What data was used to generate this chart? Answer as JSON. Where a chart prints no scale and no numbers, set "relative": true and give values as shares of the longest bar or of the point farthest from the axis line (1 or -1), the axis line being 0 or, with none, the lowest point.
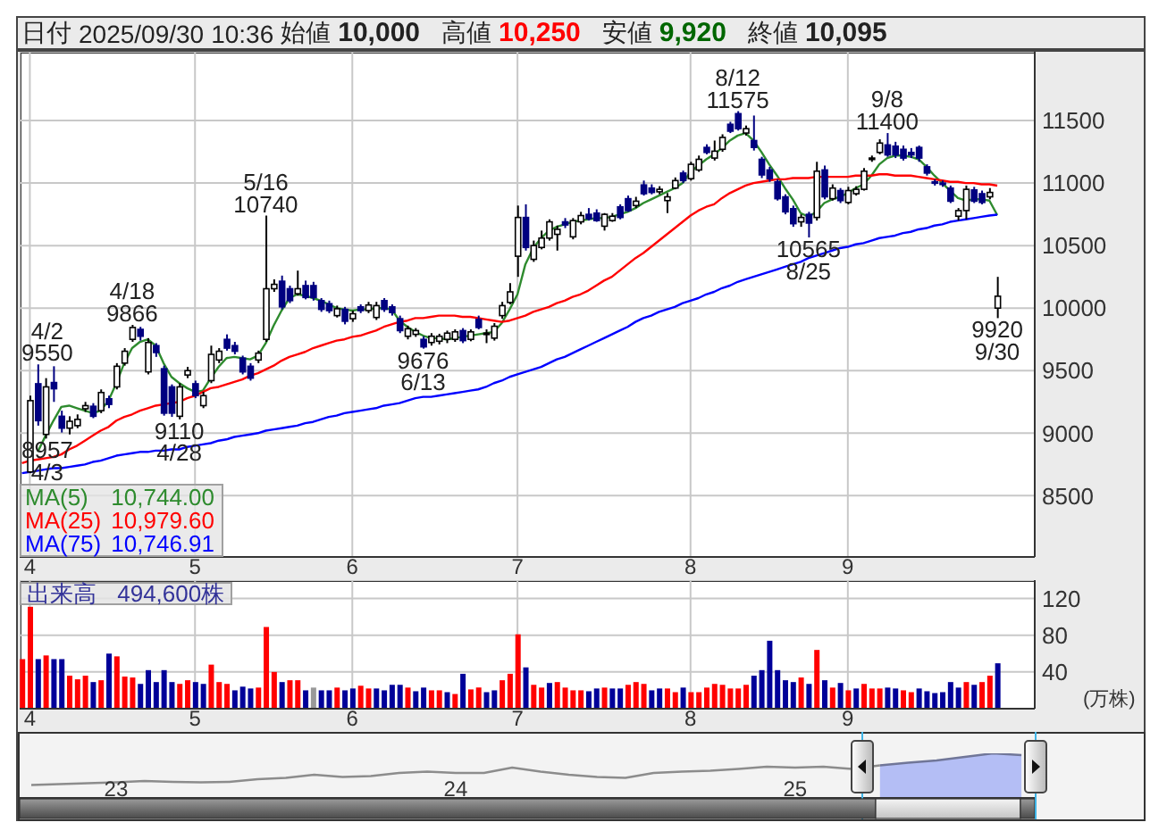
{
  "chart_data": [
    {
      "type": "candlestick",
      "title": "日付 2025/09/30 10:36 始値 10,000 高値 10,250 安値 9,920 終値 10,095",
      "categories": [
        null,
        "4",
        null,
        null,
        null,
        null,
        null,
        null,
        null,
        null,
        null,
        null,
        null,
        null,
        null,
        null,
        null,
        null,
        null,
        null,
        null,
        null,
        "5",
        null,
        null,
        null,
        null,
        null,
        null,
        null,
        null,
        null,
        null,
        null,
        null,
        null,
        null,
        null,
        null,
        null,
        null,
        null,
        "6",
        null,
        null,
        null,
        null,
        null,
        null,
        null,
        null,
        null,
        null,
        null,
        null,
        null,
        null,
        null,
        null,
        null,
        null,
        null,
        null,
        "7",
        null,
        null,
        null,
        null,
        null,
        null,
        null,
        null,
        null,
        null,
        null,
        null,
        null,
        null,
        null,
        null,
        null,
        null,
        null,
        null,
        null,
        "8",
        null,
        null,
        null,
        null,
        null,
        null,
        null,
        null,
        null,
        null,
        null,
        null,
        null,
        null,
        null,
        null,
        null,
        null,
        null,
        "9",
        null,
        null,
        null,
        null,
        null,
        null,
        null,
        null,
        null,
        null,
        null,
        null,
        null,
        null,
        null,
        null,
        null,
        null,
        null
      ],
      "ohlc": [
        null,
        [
          8690,
          9300,
          8680,
          9260
        ],
        [
          9395,
          9550,
          9060,
          9100
        ],
        [
          8990,
          9440,
          8957,
          9370
        ],
        [
          9405,
          9535,
          9250,
          9355
        ],
        [
          9135,
          9180,
          9005,
          9040
        ],
        [
          9040,
          9135,
          8990,
          9095
        ],
        [
          9060,
          9150,
          9040,
          9110
        ],
        [
          9195,
          9250,
          9170,
          9220
        ],
        [
          9215,
          9240,
          9120,
          9135
        ],
        [
          9180,
          9350,
          9160,
          9325
        ],
        [
          9275,
          9300,
          9200,
          9230
        ],
        [
          9370,
          9560,
          9350,
          9535
        ],
        [
          9560,
          9680,
          9540,
          9655
        ],
        [
          9750,
          9866,
          9730,
          9845
        ],
        [
          9830,
          9850,
          9740,
          9775
        ],
        [
          9490,
          9760,
          9470,
          9725
        ],
        [
          9700,
          9720,
          9610,
          9645
        ],
        [
          9515,
          9540,
          9140,
          9160
        ],
        [
          9370,
          9390,
          9130,
          9160
        ],
        [
          9135,
          9400,
          9110,
          9370
        ],
        [
          9465,
          9530,
          9440,
          9500
        ],
        [
          9395,
          9420,
          9280,
          9300
        ],
        [
          9220,
          9330,
          9200,
          9300
        ],
        [
          9420,
          9700,
          9400,
          9630
        ],
        [
          9585,
          9680,
          9560,
          9655
        ],
        [
          9750,
          9790,
          9660,
          9680
        ],
        [
          9700,
          9730,
          9630,
          9655
        ],
        [
          9600,
          9620,
          9470,
          9490
        ],
        [
          9535,
          9560,
          9420,
          9440
        ],
        [
          9585,
          9660,
          9560,
          9640
        ],
        [
          9750,
          10740,
          9730,
          10155
        ],
        [
          10155,
          10230,
          10130,
          10190
        ],
        [
          10215,
          10260,
          9990,
          10010
        ],
        [
          10155,
          10180,
          10040,
          10060
        ],
        [
          10115,
          10300,
          10100,
          10155
        ],
        [
          10180,
          10220,
          10070,
          10085
        ],
        [
          10180,
          10210,
          10060,
          10085
        ],
        [
          10060,
          10080,
          9970,
          9990
        ],
        [
          10035,
          10060,
          9960,
          9980
        ],
        [
          9940,
          10020,
          9925,
          9995
        ],
        [
          9990,
          10010,
          9870,
          9895
        ],
        [
          9915,
          9980,
          9890,
          9955
        ],
        [
          10010,
          10030,
          9960,
          9980
        ],
        [
          9980,
          10050,
          9960,
          10025
        ],
        [
          9925,
          10050,
          9905,
          10020
        ],
        [
          10060,
          10080,
          9970,
          9990
        ],
        [
          10010,
          10030,
          9940,
          9965
        ],
        [
          9915,
          9940,
          9800,
          9820
        ],
        [
          9775,
          9860,
          9750,
          9835
        ],
        [
          9790,
          9840,
          9770,
          9820
        ],
        [
          9750,
          9775,
          9676,
          9690
        ],
        [
          9725,
          9800,
          9700,
          9775
        ],
        [
          9735,
          9795,
          9710,
          9775
        ],
        [
          9750,
          9820,
          9720,
          9800
        ],
        [
          9750,
          9830,
          9730,
          9810
        ],
        [
          9820,
          9840,
          9720,
          9740
        ],
        [
          9750,
          9830,
          9735,
          9810
        ],
        [
          9910,
          9940,
          9830,
          9845
        ],
        [
          9790,
          9830,
          9720,
          9800
        ],
        [
          9760,
          9880,
          9740,
          9855
        ],
        [
          9940,
          10050,
          9915,
          10020
        ],
        [
          10045,
          10200,
          10030,
          10130
        ],
        [
          10415,
          10820,
          10250,
          10725
        ],
        [
          10725,
          10830,
          10460,
          10485
        ],
        [
          10390,
          10540,
          10370,
          10500
        ],
        [
          10485,
          10620,
          10470,
          10560
        ],
        [
          10560,
          10710,
          10540,
          10690
        ],
        [
          10590,
          10660,
          10460,
          10630
        ],
        [
          10690,
          10720,
          10640,
          10665
        ],
        [
          10570,
          10720,
          10550,
          10700
        ],
        [
          10690,
          10770,
          10670,
          10740
        ],
        [
          10750,
          10800,
          10700,
          10715
        ],
        [
          10760,
          10790,
          10690,
          10700
        ],
        [
          10655,
          10760,
          10620,
          10750
        ],
        [
          10700,
          10760,
          10690,
          10735
        ],
        [
          10810,
          10830,
          10710,
          10725
        ],
        [
          10875,
          10900,
          10770,
          10780
        ],
        [
          10820,
          10890,
          10800,
          10855
        ],
        [
          10985,
          11020,
          10900,
          10915
        ],
        [
          10960,
          10990,
          10910,
          10925
        ],
        [
          10930,
          10975,
          10910,
          10950
        ],
        [
          10860,
          10920,
          10760,
          10890
        ],
        [
          10960,
          11045,
          10950,
          11020
        ],
        [
          11080,
          11100,
          11000,
          11020
        ],
        [
          11035,
          11170,
          11020,
          11150
        ],
        [
          11105,
          11220,
          11090,
          11190
        ],
        [
          11285,
          11310,
          11230,
          11245
        ],
        [
          11200,
          11340,
          11180,
          11255
        ],
        [
          11270,
          11390,
          11250,
          11365
        ],
        [
          11470,
          11490,
          11400,
          11415
        ],
        [
          11555,
          11575,
          11420,
          11435
        ],
        [
          11400,
          11460,
          11380,
          11435
        ],
        [
          11340,
          11540,
          11260,
          11285
        ],
        [
          11190,
          11210,
          11040,
          11065
        ],
        [
          11105,
          11130,
          11010,
          11035
        ],
        [
          11010,
          11030,
          10860,
          10875
        ],
        [
          10890,
          10910,
          10750,
          10770
        ],
        [
          10795,
          10820,
          10650,
          10675
        ],
        [
          10690,
          10750,
          10650,
          10725
        ],
        [
          10750,
          10770,
          10565,
          10680
        ],
        [
          10725,
          11170,
          10700,
          11095
        ],
        [
          11105,
          11140,
          10870,
          10890
        ],
        [
          10875,
          10990,
          10860,
          10960
        ],
        [
          10940,
          10960,
          10840,
          10860
        ],
        [
          10845,
          10970,
          10830,
          10940
        ],
        [
          10915,
          10975,
          10900,
          10950
        ],
        [
          10950,
          11120,
          10940,
          11095
        ],
        [
          11195,
          11220,
          11170,
          11200
        ],
        [
          11245,
          11350,
          11230,
          11320
        ],
        [
          11305,
          11400,
          11210,
          11225
        ],
        [
          11295,
          11330,
          11200,
          11225
        ],
        [
          11270,
          11300,
          11180,
          11200
        ],
        [
          11245,
          11280,
          11200,
          11225
        ],
        [
          11285,
          11300,
          11170,
          11200
        ],
        [
          11130,
          11150,
          11060,
          11080
        ],
        [
          11010,
          11030,
          10980,
          11005
        ],
        [
          11000,
          11020,
          10970,
          10995
        ],
        [
          10960,
          10980,
          10840,
          10855
        ],
        [
          10735,
          10800,
          10700,
          10780
        ],
        [
          10780,
          10980,
          10710,
          10950
        ],
        [
          10945,
          10970,
          10840,
          10855
        ],
        [
          10915,
          10940,
          10830,
          10845
        ],
        [
          10890,
          10960,
          10870,
          10925
        ],
        [
          10000,
          10250,
          9920,
          10095
        ]
      ],
      "series": [
        {
          "name": "MA(5) 10,744.00",
          "type": "line",
          "color": "#2e8b2e",
          "values": [
            null,
            null,
            8850,
            8980,
            9100,
            9210,
            9220,
            9200,
            9180,
            9160,
            9180,
            9260,
            9400,
            9560,
            9680,
            9730,
            9750,
            9700,
            9560,
            9450,
            9400,
            9360,
            9330,
            9340,
            9440,
            9530,
            9600,
            9610,
            9600,
            9590,
            9620,
            9720,
            9860,
            9980,
            10080,
            10110,
            10100,
            10080,
            10060,
            10030,
            10000,
            9990,
            9980,
            9990,
            9990,
            10000,
            10000,
            9990,
            9900,
            9850,
            9810,
            9780,
            9760,
            9760,
            9750,
            9760,
            9770,
            9780,
            9790,
            9800,
            9810,
            9880,
            9990,
            10110,
            10350,
            10480,
            10560,
            10620,
            10650,
            10670,
            10690,
            10700,
            10710,
            10720,
            10720,
            10730,
            10750,
            10770,
            10800,
            10840,
            10870,
            10900,
            10930,
            10960,
            11000,
            11090,
            11140,
            11190,
            11230,
            11280,
            11340,
            11380,
            11400,
            11340,
            11250,
            11150,
            11060,
            10960,
            10870,
            10760,
            10730,
            10770,
            10840,
            10870,
            10890,
            10920,
            10960,
            10990,
            11060,
            11150,
            11200,
            11220,
            11220,
            11210,
            11190,
            11130,
            11060,
            11000,
            10940,
            10880,
            10860,
            10870,
            10870,
            10860,
            10744
          ]
        },
        {
          "name": "MA(25) 10,979.60",
          "type": "line",
          "color": "#ff0000",
          "values": [
            8760,
            8780,
            8790,
            8800,
            8810,
            8830,
            8870,
            8900,
            8940,
            8980,
            9020,
            9050,
            9100,
            9130,
            9150,
            9180,
            9200,
            9220,
            9230,
            9240,
            9250,
            9280,
            9300,
            9330,
            9360,
            9370,
            9390,
            9410,
            9430,
            9460,
            9480,
            9510,
            9540,
            9580,
            9610,
            9630,
            9650,
            9680,
            9700,
            9720,
            9740,
            9750,
            9770,
            9780,
            9800,
            9820,
            9850,
            9870,
            9890,
            9900,
            9920,
            9920,
            9930,
            9940,
            9940,
            9940,
            9930,
            9930,
            9920,
            9910,
            9900,
            9890,
            9900,
            9920,
            9940,
            9970,
            9990,
            10010,
            10040,
            10060,
            10090,
            10110,
            10140,
            10180,
            10220,
            10250,
            10300,
            10350,
            10400,
            10440,
            10490,
            10540,
            10590,
            10640,
            10690,
            10740,
            10780,
            10810,
            10830,
            10880,
            10920,
            10950,
            10980,
            11000,
            11010,
            11020,
            11030,
            11030,
            11040,
            11040,
            11040,
            11050,
            11050,
            11050,
            11050,
            11050,
            11060,
            11060,
            11060,
            11070,
            11070,
            11060,
            11060,
            11060,
            11050,
            11040,
            11030,
            11020,
            11010,
            11010,
            11000,
            11000,
            10990,
            10990,
            10979.6
          ]
        },
        {
          "name": "MA(75) 10,746.91",
          "type": "line",
          "color": "#0000ff",
          "values": [
            8680,
            8690,
            8700,
            8710,
            8720,
            8720,
            8730,
            8740,
            8750,
            8770,
            8780,
            8800,
            8820,
            8830,
            8840,
            8850,
            8850,
            8860,
            8860,
            8870,
            8870,
            8890,
            8900,
            8910,
            8920,
            8940,
            8950,
            8970,
            8980,
            8990,
            9000,
            9020,
            9030,
            9040,
            9050,
            9060,
            9080,
            9090,
            9110,
            9130,
            9140,
            9160,
            9170,
            9180,
            9190,
            9200,
            9220,
            9230,
            9240,
            9260,
            9280,
            9290,
            9290,
            9300,
            9310,
            9320,
            9330,
            9340,
            9350,
            9370,
            9400,
            9420,
            9450,
            9470,
            9490,
            9510,
            9530,
            9560,
            9590,
            9610,
            9640,
            9670,
            9700,
            9730,
            9760,
            9790,
            9820,
            9850,
            9890,
            9920,
            9940,
            9970,
            9990,
            10010,
            10040,
            10060,
            10080,
            10110,
            10130,
            10160,
            10180,
            10210,
            10230,
            10250,
            10270,
            10290,
            10310,
            10330,
            10350,
            10370,
            10400,
            10420,
            10440,
            10460,
            10480,
            10490,
            10510,
            10520,
            10540,
            10560,
            10570,
            10580,
            10600,
            10610,
            10630,
            10640,
            10660,
            10670,
            10690,
            10700,
            10710,
            10720,
            10730,
            10740,
            10746.91
          ]
        }
      ],
      "ylim": [
        8010,
        12050
      ],
      "yticks": [
        8500,
        9000,
        9500,
        10000,
        10500,
        11000,
        11500
      ],
      "grid": true,
      "legend": "bottom left",
      "annotations": [
        {
          "text": "4/2\n9550",
          "y": 9550
        },
        {
          "text": "8957\n4/3",
          "y": 8957
        },
        {
          "text": "4/18\n9866",
          "y": 9866
        },
        {
          "text": "9110\n4/28",
          "y": 9110
        },
        {
          "text": "5/16\n10740",
          "y": 10740
        },
        {
          "text": "9676\n6/13",
          "y": 9676
        },
        {
          "text": "8/12\n11575",
          "y": 11575
        },
        {
          "text": "10565\n8/25",
          "y": 10565
        },
        {
          "text": "9/8\n11400",
          "y": 11400
        },
        {
          "text": "9920\n9/30",
          "y": 9920
        }
      ]
    },
    {
      "type": "bar",
      "title": "出来高 494,600株",
      "ylabel": "(万株)",
      "categories": [
        null,
        "4",
        null,
        null,
        null,
        null,
        null,
        null,
        null,
        null,
        null,
        null,
        null,
        null,
        null,
        null,
        null,
        null,
        null,
        null,
        null,
        null,
        "5",
        null,
        null,
        null,
        null,
        null,
        null,
        null,
        null,
        null,
        null,
        null,
        null,
        null,
        null,
        null,
        null,
        null,
        null,
        null,
        "6",
        null,
        null,
        null,
        null,
        null,
        null,
        null,
        null,
        null,
        null,
        null,
        null,
        null,
        null,
        null,
        null,
        null,
        null,
        null,
        null,
        "7",
        null,
        null,
        null,
        null,
        null,
        null,
        null,
        null,
        null,
        null,
        null,
        null,
        null,
        null,
        null,
        null,
        null,
        null,
        null,
        null,
        null,
        "8",
        null,
        null,
        null,
        null,
        null,
        null,
        null,
        null,
        null,
        null,
        null,
        null,
        null,
        null,
        null,
        null,
        null,
        null,
        null,
        "9",
        null,
        null,
        null,
        null,
        null,
        null,
        null,
        null,
        null,
        null,
        null,
        null,
        null,
        null,
        null,
        null,
        null,
        null,
        null
      ],
      "values": [
        54,
        111,
        54,
        58,
        54,
        54,
        36,
        32,
        36,
        29,
        31,
        60,
        57,
        35,
        34,
        27,
        42,
        29,
        42,
        29,
        27,
        31,
        29,
        27,
        48,
        29,
        27,
        20,
        24,
        22,
        23,
        89,
        40,
        29,
        31,
        31,
        20,
        23,
        20,
        20,
        23,
        20,
        22,
        25,
        22,
        22,
        20,
        26,
        26,
        23,
        19,
        23,
        20,
        20,
        18,
        16,
        38,
        21,
        23,
        18,
        20,
        31,
        38,
        81,
        45,
        26,
        23,
        28,
        29,
        23,
        20,
        20,
        19,
        22,
        23,
        22,
        22,
        26,
        29,
        27,
        20,
        22,
        22,
        18,
        23,
        18,
        18,
        23,
        27,
        26,
        22,
        22,
        26,
        36,
        42,
        74,
        42,
        31,
        29,
        34,
        27,
        64,
        31,
        23,
        28,
        20,
        22,
        27,
        22,
        22,
        23,
        22,
        20,
        18,
        22,
        19,
        17,
        18,
        29,
        23,
        29,
        26,
        29,
        36,
        49.46
      ],
      "colors": [
        "#ff0000",
        "#ff0000",
        "#000099",
        "#ff0000",
        "#000099",
        "#000099",
        "#ff0000",
        "#ff0000",
        "#ff0000",
        "#000099",
        "#ff0000",
        "#000099",
        "#ff0000",
        "#ff0000",
        "#ff0000",
        "#000099",
        "#000099",
        "#000099",
        "#000099",
        "#000099",
        "#ff0000",
        "#ff0000",
        "#000099",
        "#000099",
        "#ff0000",
        "#ff0000",
        "#ff0000",
        "#000099",
        "#000099",
        "#000099",
        "#ff0000",
        "#ff0000",
        "#ff0000",
        "#000099",
        "#ff0000",
        "#ff0000",
        "#000099",
        "#999999",
        "#000099",
        "#000099",
        "#ff0000",
        "#000099",
        "#000099",
        "#ff0000",
        "#ff0000",
        "#000099",
        "#000099",
        "#000099",
        "#000099",
        "#ff0000",
        "#000099",
        "#000099",
        "#ff0000",
        "#ff0000",
        "#000099",
        "#ff0000",
        "#000099",
        "#ff0000",
        "#ff0000",
        "#000099",
        "#000099",
        "#ff0000",
        "#ff0000",
        "#ff0000",
        "#000099",
        "#ff0000",
        "#ff0000",
        "#000099",
        "#ff0000",
        "#ff0000",
        "#ff0000",
        "#ff0000",
        "#000099",
        "#000099",
        "#ff0000",
        "#000099",
        "#000099",
        "#ff0000",
        "#ff0000",
        "#ff0000",
        "#000099",
        "#000099",
        "#ff0000",
        "#ff0000",
        "#000099",
        "#ff0000",
        "#ff0000",
        "#ff0000",
        "#ff0000",
        "#ff0000",
        "#ff0000",
        "#ff0000",
        "#ff0000",
        "#000099",
        "#000099",
        "#000099",
        "#000099",
        "#000099",
        "#000099",
        "#ff0000",
        "#000099",
        "#ff0000",
        "#000099",
        "#ff0000",
        "#000099",
        "#ff0000",
        "#000099",
        "#ff0000",
        "#ff0000",
        "#ff0000",
        "#000099",
        "#000099",
        "#ff0000",
        "#ff0000",
        "#000099",
        "#000099",
        "#000099",
        "#000099",
        "#000099",
        "#000099",
        "#ff0000",
        "#000099",
        "#ff0000",
        "#ff0000",
        "#000099"
      ],
      "ylim": [
        0,
        140
      ],
      "yticks": [
        40,
        80,
        120
      ],
      "grid": true
    },
    {
      "type": "line",
      "relative": true,
      "categories": [
        null,
        null,
        null,
        "23",
        null,
        null,
        null,
        null,
        null,
        null,
        null,
        null,
        null,
        null,
        null,
        "24",
        null,
        null,
        null,
        null,
        null,
        null,
        null,
        null,
        null,
        null,
        null,
        "25",
        null,
        null,
        null,
        null,
        null,
        null,
        null,
        null
      ],
      "series": [
        {
          "color": "#8c8c8c",
          "values": [
            0.29,
            0.31,
            0.33,
            0.35,
            0.38,
            0.36,
            0.35,
            0.36,
            0.42,
            0.45,
            0.52,
            0.47,
            0.49,
            0.56,
            0.59,
            0.56,
            0.56,
            0.68,
            0.59,
            0.52,
            0.47,
            0.45,
            0.56,
            0.59,
            0.61,
            0.65,
            0.7,
            0.68,
            0.7,
            0.65,
            0.73,
            null,
            null,
            null,
            null,
            null
          ]
        },
        {
          "type": "area",
          "color": "#b4bef5",
          "values": [
            null,
            null,
            null,
            null,
            null,
            null,
            null,
            null,
            null,
            null,
            null,
            null,
            null,
            null,
            null,
            null,
            null,
            null,
            null,
            null,
            null,
            null,
            null,
            null,
            null,
            null,
            null,
            null,
            null,
            null,
            0.73,
            0.79,
            0.84,
            0.92,
            1,
            0.96
          ]
        }
      ]
    }
  ]
}
